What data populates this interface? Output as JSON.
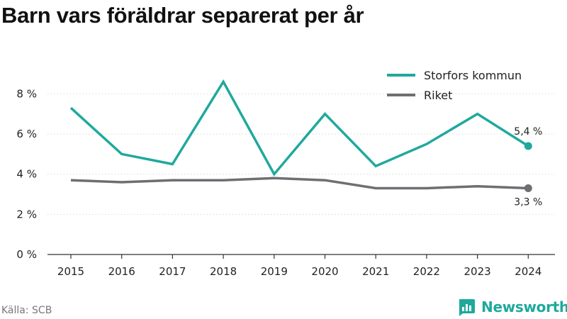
{
  "title": "Barn vars föräldrar separerat per år",
  "source": "Källa: SCB",
  "brand": "Newsworthy",
  "colors": {
    "teal": "#1fa99d",
    "gray": "#6e6e73",
    "grid": "#d9d9d9",
    "axis": "#333333"
  },
  "chart_data": {
    "type": "line",
    "title": "Barn vars föräldrar separerat per år",
    "x": [
      "2015",
      "2016",
      "2017",
      "2018",
      "2019",
      "2020",
      "2021",
      "2022",
      "2023",
      "2024"
    ],
    "ylim": [
      0,
      9
    ],
    "yticks": [
      0,
      2,
      4,
      6,
      8
    ],
    "ytick_labels": [
      "0 %",
      "2 %",
      "4 %",
      "6 %",
      "8 %"
    ],
    "grid": true,
    "legend": "top-right",
    "series": [
      {
        "name": "Storfors kommun",
        "color": "#1fa99d",
        "values": [
          7.3,
          5.0,
          4.5,
          8.6,
          4.0,
          7.0,
          4.4,
          5.5,
          7.0,
          5.4
        ],
        "end_label": "5,4 %"
      },
      {
        "name": "Riket",
        "color": "#6e6e73",
        "values": [
          3.7,
          3.6,
          3.7,
          3.7,
          3.8,
          3.7,
          3.3,
          3.3,
          3.4,
          3.3
        ],
        "end_label": "3,3 %"
      }
    ]
  }
}
